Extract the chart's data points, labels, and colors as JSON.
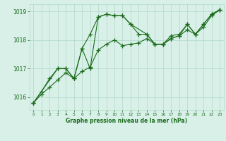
{
  "line1_x": [
    0,
    1,
    2,
    3,
    4,
    5,
    6,
    7,
    8,
    9,
    10,
    11,
    12,
    13,
    14,
    15,
    16,
    17,
    18,
    19,
    20,
    21,
    22,
    23
  ],
  "line1_y": [
    1015.8,
    1016.2,
    1016.65,
    1017.0,
    1017.0,
    1016.65,
    1017.7,
    1018.2,
    1018.8,
    1018.9,
    1018.85,
    1018.85,
    1018.55,
    1018.2,
    1018.2,
    1017.85,
    1017.85,
    1018.15,
    1018.2,
    1018.55,
    1018.2,
    1018.55,
    1018.9,
    1019.05
  ],
  "line2_x": [
    0,
    1,
    2,
    3,
    4,
    5,
    6,
    7,
    8,
    9,
    10,
    11,
    12,
    13,
    14,
    15,
    16,
    17,
    18,
    19,
    20,
    21,
    22,
    23
  ],
  "line2_y": [
    1015.8,
    1016.1,
    1016.35,
    1016.6,
    1016.85,
    1016.65,
    1016.9,
    1017.05,
    1017.65,
    1017.85,
    1018.0,
    1017.8,
    1017.85,
    1017.9,
    1018.05,
    1017.85,
    1017.85,
    1018.05,
    1018.15,
    1018.35,
    1018.2,
    1018.45,
    1018.85,
    1019.05
  ],
  "line3_x": [
    0,
    3,
    4,
    5,
    6,
    7,
    8,
    9,
    10,
    11,
    12,
    14,
    15,
    16,
    17,
    18,
    19,
    20,
    21,
    22,
    23
  ],
  "line3_y": [
    1015.8,
    1017.0,
    1017.0,
    1016.65,
    1017.7,
    1017.0,
    1018.8,
    1018.9,
    1018.85,
    1018.85,
    1018.55,
    1018.2,
    1017.85,
    1017.85,
    1018.05,
    1018.15,
    1018.55,
    1018.2,
    1018.55,
    1018.9,
    1019.05
  ],
  "title": "Graphe pression niveau de la mer (hPa)",
  "xlim": [
    -0.5,
    23.5
  ],
  "ylim": [
    1015.55,
    1019.25
  ],
  "yticks": [
    1016,
    1017,
    1018,
    1019
  ],
  "xticks": [
    0,
    1,
    2,
    3,
    4,
    5,
    6,
    7,
    8,
    9,
    10,
    11,
    12,
    13,
    14,
    15,
    16,
    17,
    18,
    19,
    20,
    21,
    22,
    23
  ],
  "line_color": "#1a6b1a",
  "bg_color": "#d8f0e8",
  "grid_color": "#b0d8c8",
  "title_color": "#1a6b1a",
  "marker": "+",
  "linewidth": 0.8,
  "markersize": 4,
  "markeredgewidth": 0.9
}
